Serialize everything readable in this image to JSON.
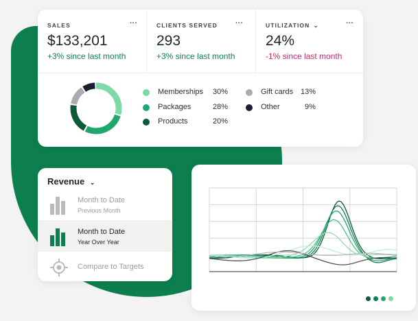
{
  "stats": [
    {
      "label": "SALES",
      "value": "$133,201",
      "change": "+3% since last month",
      "change_color": "#0d7f4e",
      "has_dropdown": false
    },
    {
      "label": "CLIENTS SERVED",
      "value": "293",
      "change": "+3% since last month",
      "change_color": "#0d7f4e",
      "has_dropdown": false
    },
    {
      "label": "UTILIZATION",
      "value": "24%",
      "change": "-1% since last month",
      "change_color": "#c2296a",
      "has_dropdown": true
    }
  ],
  "more_menu_glyph": "···",
  "donut": {
    "slices": [
      {
        "name": "Memberships",
        "percent": "30%",
        "value": 30,
        "color": "#7dd9a6"
      },
      {
        "name": "Packages",
        "percent": "28%",
        "value": 28,
        "color": "#1fa86e"
      },
      {
        "name": "Products",
        "percent": "20%",
        "value": 20,
        "color": "#0b5a38"
      },
      {
        "name": "Gift cards",
        "percent": "13%",
        "value": 13,
        "color": "#a9abae"
      },
      {
        "name": "Other",
        "percent": "9%",
        "value": 9,
        "color": "#1c1f33"
      }
    ]
  },
  "revenue": {
    "title": "Revenue",
    "items": [
      {
        "main": "Month to Date",
        "sub": "Previous Month",
        "selected": false,
        "icon": "bar-chart-icon"
      },
      {
        "main": "Month to Date",
        "sub": "Year Over Year",
        "selected": true,
        "icon": "bar-chart-icon"
      },
      {
        "main": "Compare to Targets",
        "sub": "",
        "selected": false,
        "icon": "target-icon"
      }
    ]
  },
  "line_chart": {
    "grid_columns": 4,
    "grid_rows": 5,
    "series_colors": [
      "#0b5a38",
      "#0d7f4e",
      "#1fa86e",
      "#4cc08a",
      "#8fdcb4",
      "#bfeed3",
      "#4a4d52",
      "#b7b9bb"
    ]
  },
  "pager": {
    "count": 4,
    "active": 3,
    "colors": [
      "#0b5a38",
      "#0d7f4e",
      "#1fa86e",
      "#7dd9a6"
    ]
  }
}
